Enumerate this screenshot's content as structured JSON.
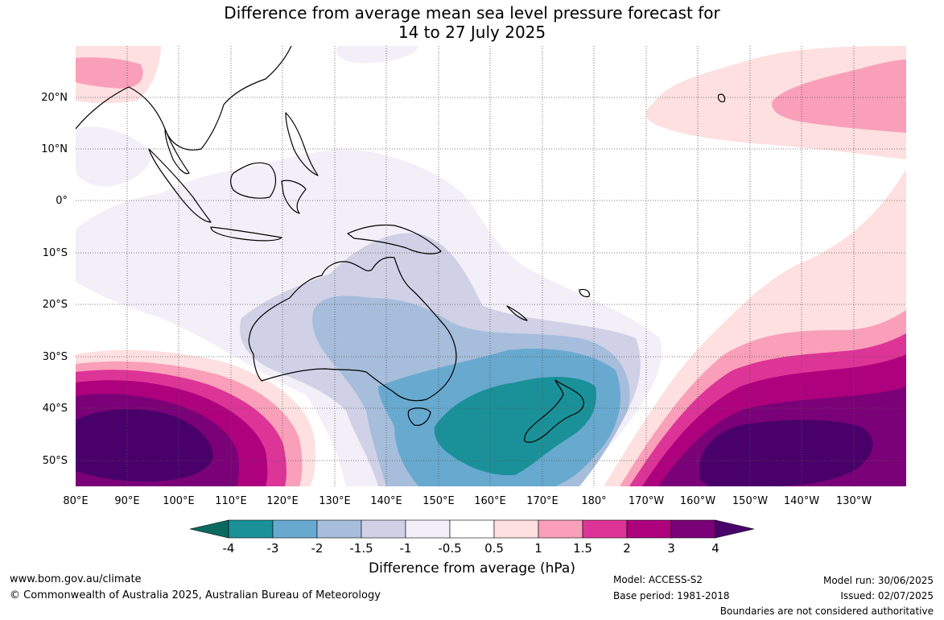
{
  "title": {
    "line1": "Difference from average mean sea level pressure forecast for",
    "line2": "14 to 27 July 2025"
  },
  "lat_labels": [
    "20°N",
    "10°N",
    "0°",
    "10°S",
    "20°S",
    "30°S",
    "40°S",
    "50°S"
  ],
  "lon_labels": [
    "80°E",
    "90°E",
    "100°E",
    "110°E",
    "120°E",
    "130°E",
    "140°E",
    "150°E",
    "160°E",
    "170°E",
    "180°",
    "170°W",
    "160°W",
    "150°W",
    "140°W",
    "130°W"
  ],
  "colorbar": {
    "ticks": [
      "-4",
      "-3",
      "-2",
      "-1.5",
      "-1",
      "-0.5",
      "0.5",
      "1",
      "1.5",
      "2",
      "3",
      "4"
    ],
    "colors": [
      "#1a9199",
      "#68a9cf",
      "#a6bddb",
      "#d0d1e6",
      "#f3eff8",
      "#ffffff",
      "#fde0df",
      "#f99fb9",
      "#dd3497",
      "#ae017e",
      "#7a0177"
    ],
    "under_color": "#0b6a5f",
    "over_color": "#49006a",
    "title": "Difference from average (hPa)"
  },
  "footer": {
    "website": "www.bom.gov.au/climate",
    "copyright": "© Commonwealth of Australia 2025, Australian Bureau of Meteorology",
    "model": "Model: ACCESS-S2",
    "base_period": "Base period: 1981-2018",
    "model_run": "Model run: 30/06/2025",
    "issued": "Issued: 02/07/2025",
    "disclaimer": "Boundaries are not considered authoritative"
  }
}
